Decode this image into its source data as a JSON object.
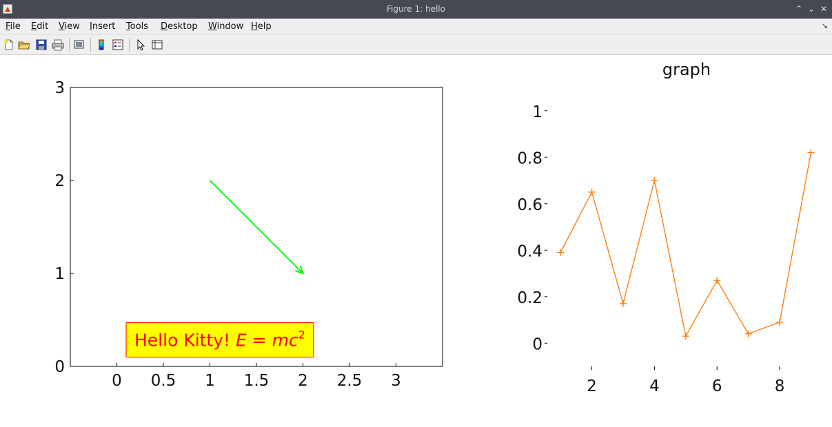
{
  "window": {
    "title": "Figure 1: hello",
    "buttons": [
      "maximize",
      "minimize",
      "close"
    ]
  },
  "menu": [
    {
      "label": "File",
      "accel": "F",
      "rest": "ile"
    },
    {
      "label": "Edit",
      "accel": "E",
      "rest": "dit"
    },
    {
      "label": "View",
      "accel": "V",
      "rest": "iew"
    },
    {
      "label": "Insert",
      "accel": "I",
      "rest": "nsert"
    },
    {
      "label": "Tools",
      "accel": "T",
      "rest": "ools"
    },
    {
      "label": "Desktop",
      "accel": "D",
      "rest": "esktop"
    },
    {
      "label": "Window",
      "accel": "W",
      "rest": "indow"
    },
    {
      "label": "Help",
      "accel": "H",
      "rest": "elp"
    }
  ],
  "toolbar": [
    "new-figure-icon",
    "open-icon",
    "save-icon",
    "print-icon",
    "link-plot-icon",
    "colorbar-icon",
    "legend-icon",
    "pointer-icon",
    "property-editor-icon"
  ],
  "chart_data": [
    {
      "type": "line",
      "title": "",
      "xlabel": "",
      "ylabel": "",
      "xlim": [
        -0.5,
        3.5
      ],
      "ylim": [
        0,
        3
      ],
      "xticks": [
        "0",
        "0.5",
        "1",
        "1.5",
        "2",
        "2.5",
        "3"
      ],
      "yticks": [
        "0",
        "1",
        "2",
        "3"
      ],
      "annotations": [
        {
          "type": "arrow",
          "from": [
            1,
            2
          ],
          "to": [
            2,
            1
          ],
          "color": "#00ff00"
        },
        {
          "type": "textbox",
          "text": "Hello Kitty!",
          "math": "E = mc",
          "exponent": "2",
          "at": [
            0.1,
            0.1
          ],
          "color": "#ff0000",
          "background": "#ffff00",
          "edge": "#ff0000"
        }
      ]
    },
    {
      "type": "line",
      "title": "graph",
      "xlabel": "",
      "ylabel": "",
      "xlim": [
        0.6,
        9.1
      ],
      "ylim": [
        -0.1,
        1.1
      ],
      "xticks": [
        "2",
        "4",
        "6",
        "8"
      ],
      "yticks": [
        "0",
        "0.2",
        "0.4",
        "0.6",
        "0.8",
        "1"
      ],
      "marker": "+",
      "color": "#ff7f0e",
      "x": [
        1,
        2,
        3,
        4,
        5,
        6,
        7,
        8,
        9
      ],
      "y": [
        0.39,
        0.65,
        0.17,
        0.7,
        0.03,
        0.27,
        0.04,
        0.09,
        0.82
      ]
    }
  ]
}
